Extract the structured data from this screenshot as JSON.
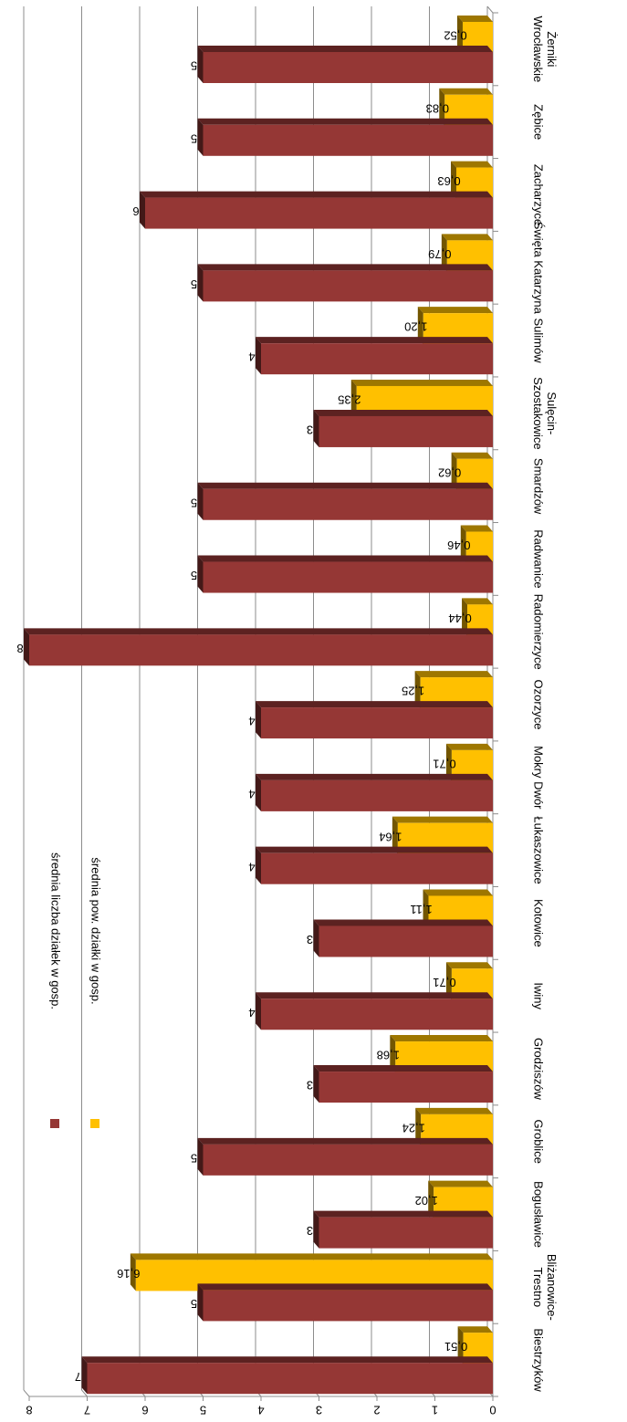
{
  "chart_data": {
    "type": "bar",
    "categories": [
      "Biestrzyków",
      "Bliżanowice-Trestno",
      "Bogusławice",
      "Groblice",
      "Grodziszów",
      "Iwiny",
      "Kotowice",
      "Łukaszowice",
      "Mokry Dwór",
      "Ozorzyce",
      "Radomierzyce",
      "Radwanice",
      "Smardzów",
      "Sulęcin-Szostakowice",
      "Sulimów",
      "Święta Katarzyna",
      "Zacharzyce",
      "Zębice",
      "Żerniki Wrocławskie"
    ],
    "category_lines": [
      [
        "Biestrzyków"
      ],
      [
        "Bliżanowice-",
        "Trestno"
      ],
      [
        "Bogusławice"
      ],
      [
        "Groblice"
      ],
      [
        "Grodziszów"
      ],
      [
        "Iwiny"
      ],
      [
        "Kotowice"
      ],
      [
        "Łukaszowice"
      ],
      [
        "Mokry Dwór"
      ],
      [
        "Ozorzyce"
      ],
      [
        "Radomierzyce"
      ],
      [
        "Radwanice"
      ],
      [
        "Smardzów"
      ],
      [
        "Sulęcin-",
        "Szostakowice"
      ],
      [
        "Sulimów"
      ],
      [
        "Święta Katarzyna"
      ],
      [
        "Zacharzyce"
      ],
      [
        "Zębice"
      ],
      [
        "Żerniki",
        "Wrocławskie"
      ]
    ],
    "series": [
      {
        "name": "średnia liczba działek w gosp.",
        "color": "#953735",
        "values": [
          7,
          5,
          3,
          5,
          3,
          4,
          3,
          4,
          4,
          4,
          8,
          5,
          5,
          3,
          4,
          5,
          6,
          5,
          5
        ],
        "labels": [
          "7",
          "5",
          "3",
          "5",
          "3",
          "4",
          "3",
          "4",
          "4",
          "4",
          "8",
          "5",
          "5",
          "3",
          "4",
          "5",
          "6",
          "5",
          "5"
        ]
      },
      {
        "name": "średnia pow. działki w gosp.",
        "color": "#FFC000",
        "values": [
          0.51,
          6.16,
          1.02,
          1.24,
          1.68,
          0.71,
          1.11,
          1.64,
          0.71,
          1.25,
          0.44,
          0.46,
          0.62,
          2.35,
          1.2,
          0.79,
          0.63,
          0.83,
          0.52
        ],
        "labels": [
          "0,51",
          "6,16",
          "1,02",
          "1,24",
          "1,68",
          "0,71",
          "1,11",
          "1,64",
          "0,71",
          "1,25",
          "0,44",
          "0,46",
          "0,62",
          "2,35",
          "1,20",
          "0,79",
          "0,63",
          "0,83",
          "0,52"
        ]
      }
    ],
    "ylim": [
      0,
      8
    ],
    "yticks": [
      "0",
      "1",
      "2",
      "3",
      "4",
      "5",
      "6",
      "7",
      "8"
    ],
    "grid": true,
    "legend": "top-left",
    "orientation": "rotated-180"
  }
}
